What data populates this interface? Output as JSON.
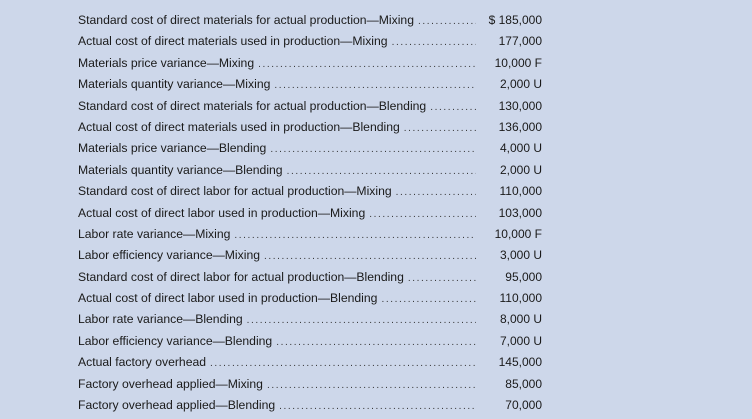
{
  "rows": [
    {
      "label": "Standard cost of direct materials for actual production—Mixing",
      "amount": "$ 185,000"
    },
    {
      "label": "Actual cost of direct materials used in production—Mixing",
      "amount": "177,000"
    },
    {
      "label": "Materials price variance—Mixing",
      "amount": "10,000 F"
    },
    {
      "label": "Materials quantity variance—Mixing",
      "amount": "2,000 U"
    },
    {
      "label": "Standard cost of direct materials for actual production—Blending",
      "amount": "130,000"
    },
    {
      "label": "Actual cost of direct materials used in production—Blending",
      "amount": "136,000"
    },
    {
      "label": "Materials price variance—Blending",
      "amount": "4,000 U"
    },
    {
      "label": "Materials quantity variance—Blending",
      "amount": "2,000 U"
    },
    {
      "label": "Standard cost of direct labor for actual production—Mixing",
      "amount": "110,000"
    },
    {
      "label": "Actual cost of direct labor used in production—Mixing",
      "amount": "103,000"
    },
    {
      "label": "Labor rate variance—Mixing",
      "amount": "10,000 F"
    },
    {
      "label": "Labor efficiency variance—Mixing",
      "amount": "3,000 U"
    },
    {
      "label": "Standard cost of direct labor for actual production—Blending",
      "amount": "95,000"
    },
    {
      "label": "Actual cost of direct labor used in production—Blending",
      "amount": "110,000"
    },
    {
      "label": "Labor rate variance—Blending",
      "amount": "8,000 U"
    },
    {
      "label": "Labor efficiency variance—Blending",
      "amount": "7,000 U"
    },
    {
      "label": "Actual factory overhead",
      "amount": "145,000"
    },
    {
      "label": "Factory overhead applied—Mixing",
      "amount": "85,000"
    },
    {
      "label": "Factory overhead applied—Blending",
      "amount": "70,000"
    }
  ]
}
